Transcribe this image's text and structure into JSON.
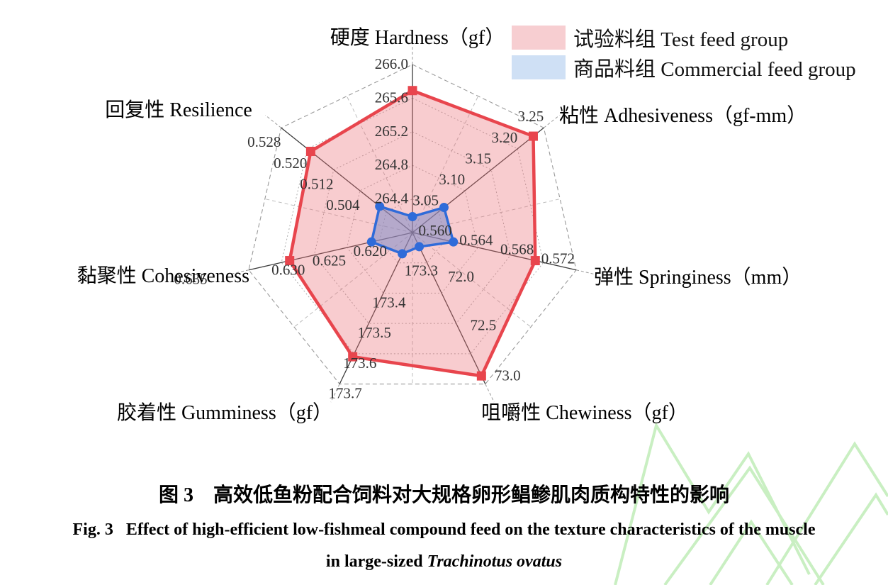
{
  "figure": {
    "caption_zh": "图 3　高效低鱼粉配合饲料对大规格卵形鲳鲹肌肉质构特性的影响",
    "caption_en_fig": "Fig. 3",
    "caption_en_main": "Effect of high-efficient low-fishmeal compound feed on the texture characteristics of the muscle",
    "caption_en_tail_prefix": "in large-sized",
    "caption_en_species": "Trachinotus ovatus"
  },
  "chart_data": {
    "type": "radar",
    "rings": 5,
    "legend_position": "top-right",
    "grid": "heptagonal web, dotted rings, solid spokes, dashed mid-angle spokes",
    "axes": [
      {
        "key": "hardness",
        "title": "硬度 Hardness（gf）",
        "min": 264.0,
        "max": 266.0,
        "tick_labels": [
          "264.4",
          "264.8",
          "265.2",
          "265.6",
          "266.0"
        ],
        "tick_values": [
          264.4,
          264.8,
          265.2,
          265.6,
          266.0
        ]
      },
      {
        "key": "adhesiveness",
        "title": "粘性 Adhesiveness（gf-mm）",
        "min": 3.0,
        "max": 3.25,
        "tick_labels": [
          "3.05",
          "3.10",
          "3.15",
          "3.20",
          "3.25"
        ],
        "tick_values": [
          3.05,
          3.1,
          3.15,
          3.2,
          3.25
        ]
      },
      {
        "key": "springiness",
        "title": "弹性 Springiness（mm）",
        "min": 0.556,
        "max": 0.572,
        "tick_labels": [
          "0.560",
          "0.564",
          "0.568",
          "0.572"
        ],
        "tick_values": [
          0.56,
          0.564,
          0.568,
          0.572
        ]
      },
      {
        "key": "chewiness",
        "title": "咀嚼性 Chewiness（gf）",
        "min": 71.5,
        "max": 73.0,
        "tick_labels": [
          "72.0",
          "72.5",
          "73.0"
        ],
        "tick_values": [
          72.0,
          72.5,
          73.0
        ]
      },
      {
        "key": "gumminess",
        "title": "胶着性 Gumminess（gf）",
        "min": 173.2,
        "max": 173.7,
        "tick_labels": [
          "173.3",
          "173.4",
          "173.5",
          "173.6",
          "173.7"
        ],
        "tick_values": [
          173.3,
          173.4,
          173.5,
          173.6,
          173.7
        ]
      },
      {
        "key": "cohesiveness",
        "title": "黏聚性 Cohesiveness",
        "min": 0.615,
        "max": 0.635,
        "tick_labels": [
          "0.620",
          "0.625",
          "0.630",
          "0.635"
        ],
        "tick_values": [
          0.62,
          0.625,
          0.63,
          0.635
        ]
      },
      {
        "key": "resilience",
        "title": "回复性 Resilience",
        "min": 0.488,
        "max": 0.528,
        "tick_labels": [
          "0.504",
          "0.512",
          "0.520",
          "0.528"
        ],
        "tick_values": [
          0.504,
          0.512,
          0.52,
          0.528
        ]
      }
    ],
    "series": [
      {
        "name": "试验料组 Test feed group",
        "marker": "square",
        "line_color": "#E8454D",
        "fill_color": "#EB6E76",
        "fill_opacity": 0.35,
        "swatch_color": "#F7CED1",
        "values": [
          265.69,
          3.23,
          0.568,
          72.92,
          173.61,
          0.63,
          0.519
        ]
      },
      {
        "name": "商品料组 Commercial feed group",
        "marker": "circle",
        "line_color": "#2F6BD9",
        "fill_color": "#7D8CC8",
        "fill_opacity": 0.55,
        "swatch_color": "#CFE0F5",
        "values": [
          264.19,
          3.06,
          0.56,
          71.64,
          173.27,
          0.62,
          0.498
        ]
      }
    ]
  }
}
